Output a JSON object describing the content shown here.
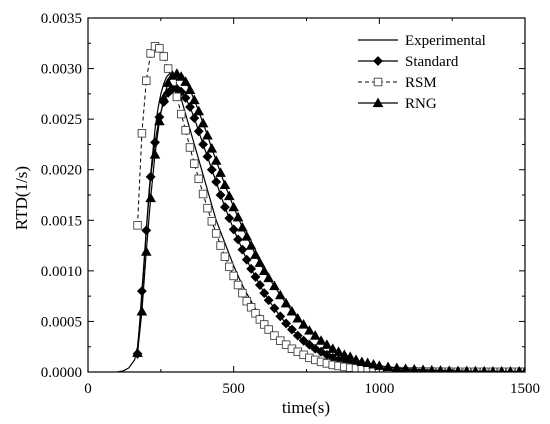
{
  "chart_data": {
    "type": "line",
    "xlabel": "time(s)",
    "ylabel": "RTD(1/s)",
    "xlim": [
      0,
      1500
    ],
    "ylim": [
      0,
      0.0035
    ],
    "xticks": [
      "0",
      "500",
      "1000",
      "1500"
    ],
    "yticks": [
      "0.0000",
      "0.0005",
      "0.0010",
      "0.0015",
      "0.0020",
      "0.0025",
      "0.0030",
      "0.0035"
    ],
    "grid": false,
    "legend_position": "top-right",
    "series": [
      {
        "name": "Experimental",
        "style": "solid",
        "marker": "none",
        "x": [
          100,
          120,
          140,
          160,
          170,
          180,
          190,
          200,
          210,
          220,
          230,
          240,
          250,
          260,
          270,
          280,
          290,
          300,
          310,
          320,
          330,
          340,
          360,
          380,
          400,
          420,
          440,
          460,
          480,
          500,
          520,
          540,
          560,
          580,
          600,
          620,
          650,
          700,
          750,
          800,
          850,
          900,
          950,
          1000,
          1050,
          1100,
          1200,
          1300,
          1400,
          1500
        ],
        "y": [
          0.0,
          1e-05,
          4e-05,
          0.00012,
          0.00025,
          0.00055,
          0.00095,
          0.0014,
          0.0018,
          0.0021,
          0.0024,
          0.0026,
          0.00275,
          0.00285,
          0.00292,
          0.00295,
          0.00293,
          0.00288,
          0.0028,
          0.0027,
          0.0026,
          0.0025,
          0.0023,
          0.0021,
          0.0019,
          0.0017,
          0.0015,
          0.00135,
          0.0012,
          0.00105,
          0.00092,
          0.0008,
          0.0007,
          0.0006,
          0.00052,
          0.00045,
          0.00035,
          0.00024,
          0.00016,
          0.0001,
          7e-05,
          5e-05,
          3e-05,
          2e-05,
          1e-05,
          1e-05,
          5e-06,
          3e-06,
          2e-06,
          2e-06
        ]
      },
      {
        "name": "Standard",
        "style": "solid",
        "marker": "diamond-filled",
        "x": [
          170,
          185,
          200,
          215,
          230,
          245,
          260,
          275,
          290,
          305,
          320,
          335,
          350,
          365,
          380,
          395,
          410,
          425,
          440,
          455,
          470,
          485,
          500,
          515,
          530,
          545,
          560,
          575,
          590,
          605,
          620,
          640,
          660,
          680,
          700,
          720,
          740,
          760,
          780,
          800,
          820,
          840,
          860,
          880,
          900,
          920,
          940,
          960,
          980,
          1000,
          1030,
          1060,
          1090,
          1120,
          1150,
          1180,
          1210,
          1240,
          1270,
          1300,
          1330,
          1360,
          1390,
          1420,
          1450,
          1480,
          1500
        ],
        "y": [
          0.00018,
          0.0008,
          0.0014,
          0.00193,
          0.00227,
          0.00252,
          0.00267,
          0.00276,
          0.0028,
          0.0028,
          0.00277,
          0.00271,
          0.00262,
          0.00251,
          0.00238,
          0.00225,
          0.00213,
          0.002,
          0.00188,
          0.00175,
          0.00163,
          0.00152,
          0.00141,
          0.00131,
          0.00121,
          0.00111,
          0.00102,
          0.00094,
          0.00086,
          0.00078,
          0.00071,
          0.00063,
          0.00055,
          0.00048,
          0.00042,
          0.00036,
          0.00031,
          0.00027,
          0.00023,
          0.0002,
          0.00017,
          0.00014,
          0.00012,
          0.0001,
          8.5e-05,
          7e-05,
          6e-05,
          5e-05,
          4.2e-05,
          3.5e-05,
          2.8e-05,
          2.2e-05,
          1.8e-05,
          1.5e-05,
          1.2e-05,
          1e-05,
          8e-06,
          7e-06,
          6e-06,
          5e-06,
          4e-06,
          4e-06,
          3e-06,
          3e-06,
          3e-06,
          3e-06,
          3e-06
        ]
      },
      {
        "name": "RSM",
        "style": "dashed",
        "marker": "square-open",
        "x": [
          170,
          185,
          200,
          215,
          230,
          245,
          260,
          275,
          290,
          305,
          320,
          335,
          350,
          365,
          380,
          395,
          410,
          425,
          440,
          455,
          470,
          485,
          500,
          515,
          530,
          545,
          560,
          575,
          590,
          605,
          620,
          640,
          660,
          680,
          700,
          720,
          740,
          760,
          780,
          800,
          820,
          840,
          860,
          880,
          900,
          920,
          940,
          960,
          980,
          1000,
          1030,
          1060,
          1090,
          1120,
          1150,
          1180,
          1210,
          1240,
          1270,
          1300,
          1330,
          1360,
          1390,
          1420,
          1450,
          1480,
          1500
        ],
        "y": [
          0.00145,
          0.00236,
          0.00288,
          0.00315,
          0.00322,
          0.0032,
          0.00312,
          0.003,
          0.00287,
          0.00272,
          0.00255,
          0.00239,
          0.00222,
          0.00206,
          0.00191,
          0.00176,
          0.00162,
          0.00149,
          0.00137,
          0.00125,
          0.00114,
          0.00104,
          0.00095,
          0.00086,
          0.00078,
          0.0007,
          0.00064,
          0.00058,
          0.00052,
          0.00047,
          0.00042,
          0.00036,
          0.00031,
          0.00027,
          0.00023,
          0.0002,
          0.00017,
          0.00014,
          0.00012,
          0.0001,
          8.5e-05,
          7e-05,
          6e-05,
          5e-05,
          4.2e-05,
          3.5e-05,
          3e-05,
          2.5e-05,
          2e-05,
          1.7e-05,
          1.3e-05,
          1e-05,
          8e-06,
          6e-06,
          5e-06,
          4e-06,
          3e-06,
          3e-06,
          2e-06,
          2e-06,
          2e-06,
          2e-06,
          2e-06,
          2e-06,
          2e-06,
          2e-06,
          2e-06
        ]
      },
      {
        "name": "RNG",
        "style": "solid",
        "marker": "triangle-filled",
        "x": [
          170,
          185,
          200,
          215,
          230,
          245,
          260,
          275,
          290,
          305,
          320,
          335,
          350,
          365,
          380,
          395,
          410,
          425,
          440,
          455,
          470,
          485,
          500,
          515,
          530,
          545,
          560,
          575,
          590,
          605,
          620,
          640,
          660,
          680,
          700,
          720,
          740,
          760,
          780,
          800,
          820,
          840,
          860,
          880,
          900,
          920,
          940,
          960,
          980,
          1000,
          1030,
          1060,
          1090,
          1120,
          1150,
          1180,
          1210,
          1240,
          1270,
          1300,
          1330,
          1360,
          1390,
          1420,
          1450,
          1480,
          1500
        ],
        "y": [
          0.00019,
          0.0006,
          0.00119,
          0.00172,
          0.00215,
          0.00248,
          0.00271,
          0.00286,
          0.00293,
          0.00295,
          0.00292,
          0.00287,
          0.00279,
          0.00269,
          0.00258,
          0.00246,
          0.00234,
          0.00221,
          0.00209,
          0.00197,
          0.00185,
          0.00174,
          0.00163,
          0.00153,
          0.00143,
          0.00134,
          0.00125,
          0.00116,
          0.00108,
          0.001,
          0.00093,
          0.00085,
          0.00076,
          0.00068,
          0.0006,
          0.00053,
          0.00047,
          0.00041,
          0.00036,
          0.00031,
          0.00027,
          0.00023,
          0.0002,
          0.00017,
          0.00015,
          0.00012,
          0.0001,
          9e-05,
          7.5e-05,
          6.2e-05,
          5e-05,
          4e-05,
          3.2e-05,
          2.6e-05,
          2.1e-05,
          1.7e-05,
          1.4e-05,
          1.2e-05,
          1e-05,
          9e-06,
          8e-06,
          7e-06,
          6e-06,
          6e-06,
          5e-06,
          5e-06,
          5e-06
        ]
      }
    ]
  }
}
